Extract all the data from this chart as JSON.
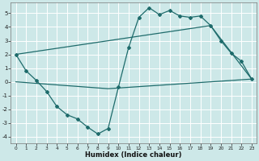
{
  "xlabel": "Humidex (Indice chaleur)",
  "bg_color": "#cde8e8",
  "grid_color": "#b8d8d8",
  "line_color": "#1e6b6b",
  "xlim": [
    -0.5,
    23.5
  ],
  "ylim": [
    -4.5,
    5.8
  ],
  "yticks": [
    -4,
    -3,
    -2,
    -1,
    0,
    1,
    2,
    3,
    4,
    5
  ],
  "xticks": [
    0,
    1,
    2,
    3,
    4,
    5,
    6,
    7,
    8,
    9,
    10,
    11,
    12,
    13,
    14,
    15,
    16,
    17,
    18,
    19,
    20,
    21,
    22,
    23
  ],
  "line1_x": [
    0,
    1,
    2,
    3,
    4,
    5,
    6,
    7,
    8,
    9,
    10,
    11,
    12,
    13,
    14,
    15,
    16,
    17,
    18,
    19,
    20,
    21,
    22,
    23
  ],
  "line1_y": [
    2.0,
    0.8,
    0.1,
    -0.7,
    -1.8,
    -2.4,
    -2.7,
    -3.3,
    -3.8,
    -3.4,
    -0.4,
    2.5,
    4.7,
    5.4,
    4.9,
    5.2,
    4.8,
    4.7,
    4.8,
    4.1,
    3.0,
    2.1,
    1.5,
    0.2
  ],
  "line2_x": [
    0,
    19,
    23
  ],
  "line2_y": [
    2.0,
    4.1,
    0.2
  ],
  "line3_x": [
    0,
    9,
    23
  ],
  "line3_y": [
    0.0,
    -0.5,
    0.2
  ]
}
